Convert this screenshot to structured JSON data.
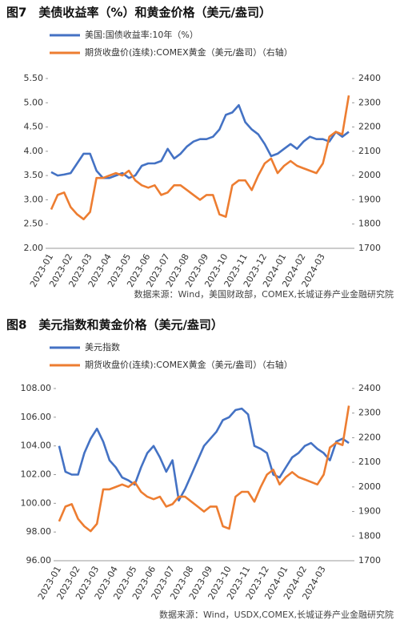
{
  "chart_data": [
    {
      "type": "line",
      "title": "图7　美债收益率（%）和黄金价格（美元/盎司）",
      "source": "数据来源：Wind，美国财政部，COMEX,长城证券产业金融研究院",
      "categories": [
        "2023-01",
        null,
        null,
        "2023-02",
        null,
        null,
        "2023-03",
        null,
        null,
        "2023-04",
        null,
        null,
        "2023-05",
        null,
        null,
        "2023-06",
        null,
        null,
        "2023-07",
        null,
        null,
        "2023-08",
        null,
        null,
        "2023-09",
        null,
        null,
        "2023-10",
        null,
        null,
        "2023-11",
        null,
        null,
        "2023-12",
        null,
        null,
        "2024-01",
        null,
        null,
        "2024-02",
        null,
        null,
        "2024-03",
        null,
        null,
        null,
        null
      ],
      "ylim": [
        2.0,
        5.5
      ],
      "yticks": [
        {
          "value": 2.0,
          "label": "2.00"
        },
        {
          "value": 2.5,
          "label": "2.50"
        },
        {
          "value": 3.0,
          "label": "3.00"
        },
        {
          "value": 3.5,
          "label": "3.50"
        },
        {
          "value": 4.0,
          "label": "4.00"
        },
        {
          "value": 4.5,
          "label": "4.50"
        },
        {
          "value": 5.0,
          "label": "5.00"
        },
        {
          "value": 5.5,
          "label": "5.50"
        }
      ],
      "y2lim": [
        1700,
        2400
      ],
      "y2ticks": [
        1700,
        1800,
        1900,
        2000,
        2100,
        2200,
        2300,
        2400
      ],
      "series": [
        {
          "name": "美国:国债收益率:10年（%）",
          "color": "#4472c4",
          "values": [
            3.57,
            3.5,
            3.52,
            3.55,
            3.75,
            3.95,
            3.95,
            3.6,
            3.45,
            3.45,
            3.5,
            3.55,
            3.45,
            3.5,
            3.7,
            3.75,
            3.75,
            3.8,
            4.05,
            3.85,
            3.95,
            4.1,
            4.2,
            4.25,
            4.25,
            4.3,
            4.45,
            4.75,
            4.8,
            4.95,
            4.6,
            4.45,
            4.35,
            4.15,
            3.9,
            3.95,
            4.05,
            4.15,
            4.05,
            4.2,
            4.3,
            4.25,
            4.25,
            4.2,
            4.4,
            4.3,
            4.4
          ]
        },
        {
          "name": "期货收盘价(连续):COMEX黄金（美元/盎司）（右轴）",
          "color": "#ed7d31",
          "axis": "y2",
          "values": [
            1860,
            1920,
            1930,
            1870,
            1840,
            1820,
            1850,
            1990,
            1990,
            2000,
            2010,
            2000,
            2020,
            1980,
            1960,
            1950,
            1960,
            1920,
            1930,
            1960,
            1960,
            1940,
            1920,
            1900,
            1920,
            1920,
            1840,
            1830,
            1960,
            1980,
            1980,
            1940,
            2000,
            2050,
            2070,
            2010,
            2040,
            2060,
            2040,
            2030,
            2020,
            2010,
            2050,
            2160,
            2180,
            2170,
            2330
          ]
        }
      ]
    },
    {
      "type": "line",
      "title": "图8　美元指数和黄金价格（美元/盎司）",
      "source": "数据来源：Wind，USDX,COMEX,长城证券产业金融研究院",
      "categories": [
        "2023-01",
        null,
        null,
        "2023-02",
        null,
        null,
        "2023-03",
        null,
        null,
        "2023-04",
        null,
        null,
        "2023-05",
        null,
        null,
        "2023-06",
        null,
        null,
        "2023-07",
        null,
        null,
        "2023-08",
        null,
        null,
        "2023-09",
        null,
        null,
        "2023-10",
        null,
        null,
        "2023-11",
        null,
        null,
        "2023-12",
        null,
        null,
        "2024-01",
        null,
        null,
        "2024-02",
        null,
        null,
        "2024-03",
        null,
        null,
        null,
        null
      ],
      "ylim": [
        96,
        108
      ],
      "yticks": [
        {
          "value": 96,
          "label": "96.00"
        },
        {
          "value": 98,
          "label": "98.00"
        },
        {
          "value": 100,
          "label": "100.00"
        },
        {
          "value": 102,
          "label": "102.00"
        },
        {
          "value": 104,
          "label": "104.00"
        },
        {
          "value": 106,
          "label": "106.00"
        },
        {
          "value": 108,
          "label": "108.00"
        }
      ],
      "y2lim": [
        1700,
        2400
      ],
      "y2ticks": [
        1700,
        1800,
        1900,
        2000,
        2100,
        2200,
        2300,
        2400
      ],
      "series": [
        {
          "name": "美元指数",
          "color": "#4472c4",
          "values": [
            104.0,
            102.2,
            102.0,
            102.0,
            103.5,
            104.5,
            105.2,
            104.3,
            103.0,
            102.5,
            101.8,
            101.6,
            101.3,
            102.5,
            103.5,
            104.0,
            103.2,
            102.2,
            103.0,
            100.2,
            101.0,
            102.0,
            103.0,
            104.0,
            104.5,
            105.0,
            105.8,
            106.0,
            106.5,
            106.6,
            106.2,
            104.0,
            103.8,
            103.5,
            102.0,
            101.8,
            102.5,
            103.2,
            103.5,
            104.0,
            104.2,
            103.8,
            103.5,
            103.0,
            104.3,
            104.5,
            104.2
          ]
        },
        {
          "name": "期货收盘价(连续):COMEX黄金（美元/盎司）（右轴）",
          "color": "#ed7d31",
          "axis": "y2",
          "values": [
            1860,
            1920,
            1930,
            1870,
            1840,
            1820,
            1850,
            1990,
            1990,
            2000,
            2010,
            2000,
            2020,
            1980,
            1960,
            1950,
            1960,
            1920,
            1930,
            1960,
            1960,
            1940,
            1920,
            1900,
            1920,
            1920,
            1840,
            1830,
            1960,
            1980,
            1980,
            1940,
            2000,
            2050,
            2070,
            2010,
            2040,
            2060,
            2040,
            2030,
            2020,
            2010,
            2050,
            2160,
            2180,
            2170,
            2330
          ]
        }
      ]
    }
  ]
}
